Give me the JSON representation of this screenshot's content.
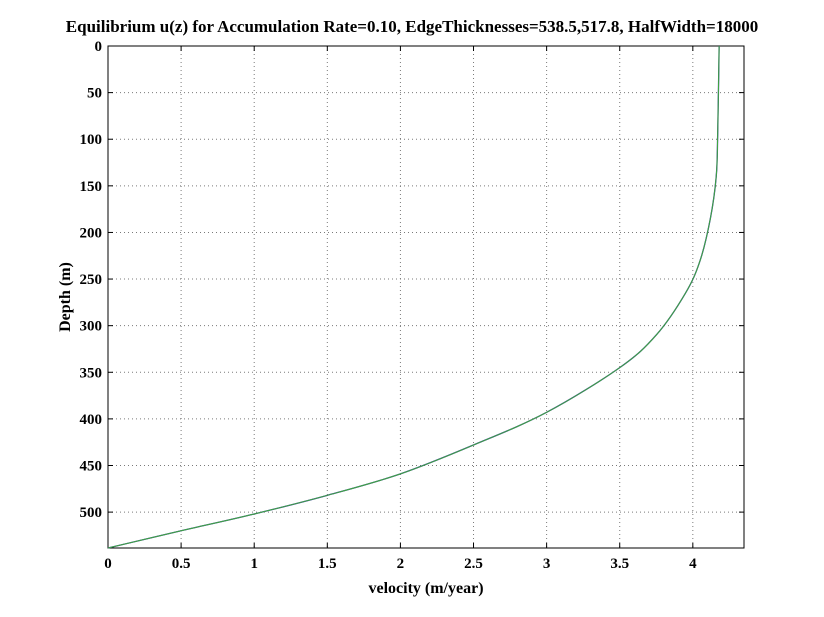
{
  "chart_data": {
    "type": "line",
    "title": "Equilibrium  u(z) for Accumulation Rate=0.10, EdgeThicknesses=538.5,517.8, HalfWidth=18000",
    "xlabel": "velocity (m/year)",
    "ylabel": "Depth (m)",
    "xlim": [
      0,
      4.35
    ],
    "ylim": [
      538.5,
      0
    ],
    "y_reversed": true,
    "grid": true,
    "x_ticks": [
      "0",
      "0.5",
      "1",
      "1.5",
      "2",
      "2.5",
      "3",
      "3.5",
      "4"
    ],
    "y_ticks": [
      "0",
      "50",
      "100",
      "150",
      "200",
      "250",
      "300",
      "350",
      "400",
      "450",
      "500"
    ],
    "series": [
      {
        "color": "#2b2b9a",
        "x": [
          0,
          0.5,
          1.0,
          1.5,
          2.0,
          2.5,
          3.0,
          3.5,
          3.75,
          3.95,
          4.05,
          4.12,
          4.16,
          4.17,
          4.18
        ],
        "y": [
          538.5,
          520,
          502,
          482,
          459,
          428,
          393,
          345,
          310,
          265,
          230,
          185,
          140,
          95,
          0
        ]
      },
      {
        "color": "#3fa83f",
        "x": [
          0,
          0.5,
          1.0,
          1.5,
          2.0,
          2.5,
          3.0,
          3.5,
          3.75,
          3.95,
          4.05,
          4.12,
          4.16,
          4.17,
          4.18
        ],
        "y": [
          538.5,
          520,
          502,
          482,
          459,
          428,
          393,
          345,
          310,
          265,
          230,
          185,
          140,
          95,
          0
        ]
      }
    ]
  }
}
